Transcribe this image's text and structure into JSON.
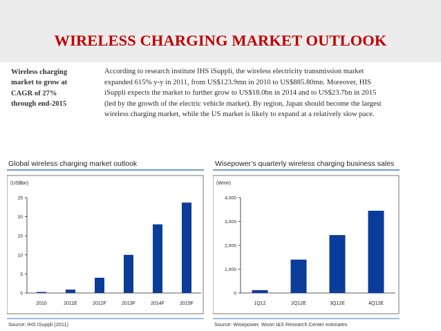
{
  "slide": {
    "title": "WIRELESS CHARGING MARKET OUTLOOK",
    "side_note_lines": [
      "Wireless charging",
      "market to grow at",
      "CAGR of 27%",
      "through end-2015"
    ],
    "body_lines": [
      "According to research institute IHS iSuppli, the wireless electricity transmission market",
      "expanded 615% y-y in 2011, from US$123.9mn in 2010 to US$885.80mn. Moreover, HIS",
      "iSuppli expects the market to further grow to US$18.0bn in 2014 and to US$23.7bn in 2015",
      "(led by the growth of the electric vehicle market). By region, Japan should become the largest",
      "wireless charging market, while the US market is likely to expand at a relatively slow pace."
    ]
  },
  "colors": {
    "title": "#c00000",
    "bar": "#0a3c9a",
    "panel_rule": "#3a7fc4",
    "axis": "#222222"
  },
  "chart_data": [
    {
      "type": "bar",
      "title": "Global wireless charging market outlook",
      "unit_label": "(US$bn)",
      "categories": [
        "2010",
        "2011E",
        "2012F",
        "2013F",
        "2014F",
        "2015F"
      ],
      "values": [
        0.12,
        0.89,
        4.0,
        10.0,
        18.0,
        23.7
      ],
      "ylim": [
        0,
        25
      ],
      "yticks": [
        0,
        5,
        10,
        15,
        20,
        25
      ],
      "ytick_labels": [
        "0",
        "5",
        "10",
        "15",
        "20",
        "25"
      ],
      "xlabel": "",
      "ylabel": "",
      "source": "Source: IHS iSuppli (2011)"
    },
    {
      "type": "bar",
      "title": "Wisepower’s quarterly wireless charging business sales",
      "unit_label": "(Wmn)",
      "categories": [
        "1Q12",
        "2Q12E",
        "3Q12E",
        "4Q12E"
      ],
      "values": [
        120,
        1400,
        2430,
        3450
      ],
      "ylim": [
        0,
        4000
      ],
      "yticks": [
        0,
        1000,
        2000,
        3000,
        4000
      ],
      "ytick_labels": [
        "0",
        "1,000",
        "2,000",
        "3,000",
        "4,000"
      ],
      "xlabel": "",
      "ylabel": "",
      "source": "Source: Wisepower, Woori I&S Research Center estimates"
    }
  ]
}
